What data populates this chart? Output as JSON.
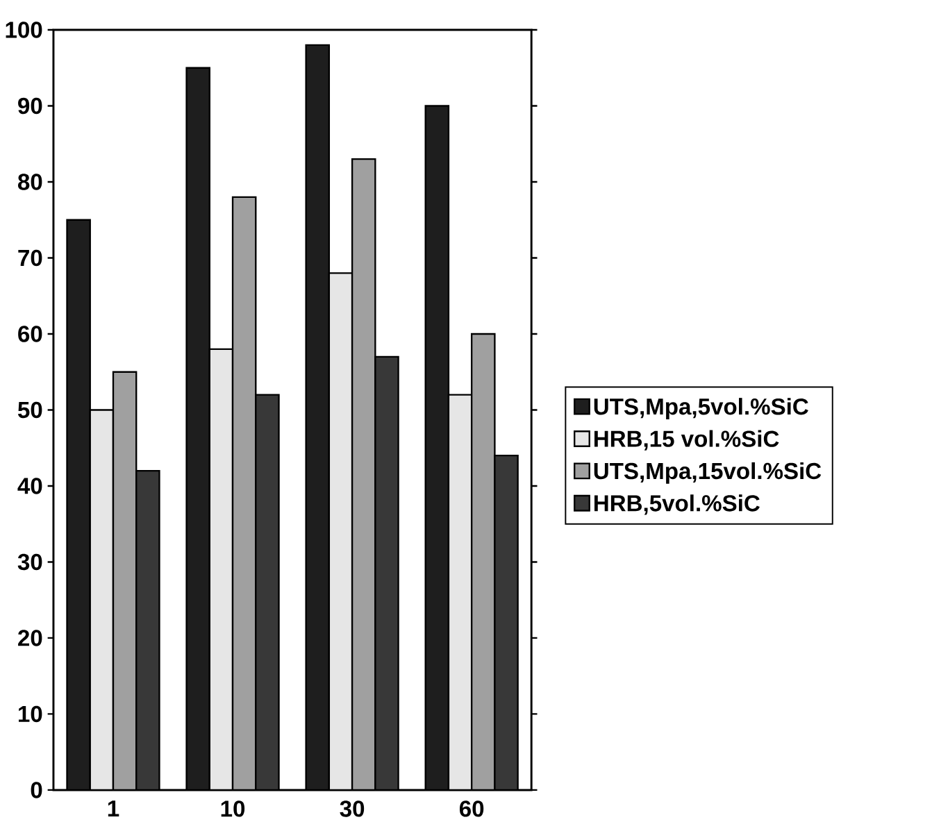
{
  "chart_data": {
    "type": "bar",
    "categories": [
      "1",
      "10",
      "30",
      "60"
    ],
    "series": [
      {
        "name": "UTS,Mpa,5vol.%SiC",
        "color": "#1e1e1e",
        "values": [
          75,
          95,
          98,
          90
        ]
      },
      {
        "name": "HRB,15 vol.%SiC",
        "color": "#e6e6e6",
        "values": [
          50,
          58,
          68,
          52
        ]
      },
      {
        "name": "UTS,Mpa,15vol.%SiC",
        "color": "#a0a0a0",
        "values": [
          55,
          78,
          83,
          60
        ]
      },
      {
        "name": "HRB,5vol.%SiC",
        "color": "#383838",
        "values": [
          42,
          52,
          57,
          44
        ]
      }
    ],
    "ylim": [
      0,
      100
    ],
    "yticks": [
      0,
      10,
      20,
      30,
      40,
      50,
      60,
      70,
      80,
      90,
      100
    ],
    "legend": "right",
    "grid": false
  }
}
